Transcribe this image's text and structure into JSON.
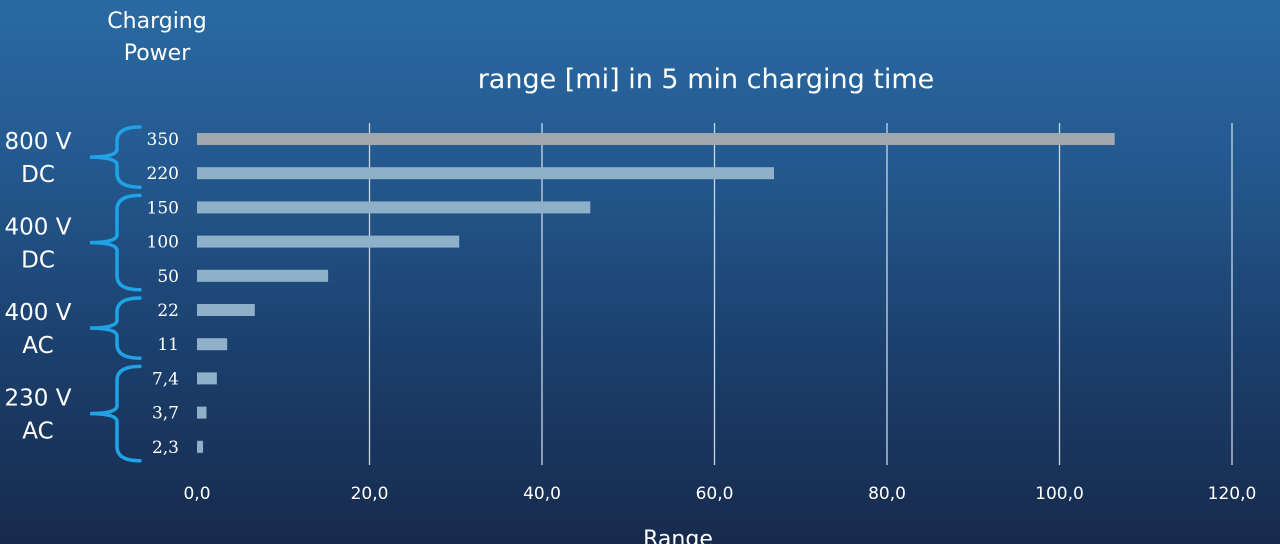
{
  "chart_data": {
    "type": "bar",
    "orientation": "horizontal",
    "title": "range [mi] in 5 min charging time",
    "ylabel": "Charging\nPower",
    "xlabel": "Range",
    "xlim": [
      0,
      120
    ],
    "xticks": [
      "0,0",
      "20,0",
      "40,0",
      "60,0",
      "80,0",
      "100,0",
      "120,0"
    ],
    "grid": "vertical",
    "categories": [
      "350",
      "220",
      "150",
      "100",
      "50",
      "22",
      "11",
      "7,4",
      "3,7",
      "2,3"
    ],
    "values": [
      106.4,
      66.9,
      45.6,
      30.4,
      15.2,
      6.7,
      3.5,
      2.3,
      1.1,
      0.7
    ],
    "highlight_category": "350",
    "groups": [
      {
        "label_line1": "800 V",
        "label_line2": "DC",
        "categories": [
          "350",
          "220"
        ]
      },
      {
        "label_line1": "400 V",
        "label_line2": "DC",
        "categories": [
          "150",
          "100",
          "50"
        ]
      },
      {
        "label_line1": "400 V",
        "label_line2": "AC",
        "categories": [
          "22",
          "11"
        ]
      },
      {
        "label_line1": "230 V",
        "label_line2": "AC",
        "categories": [
          "7,4",
          "3,7",
          "2,3"
        ]
      }
    ],
    "colors": {
      "bar": "#8fb0c9",
      "bar_highlight": "#a3a8ae",
      "gridline": "#c9d6e4",
      "bracket": "#1fa3e6",
      "text": "#ffffff"
    }
  }
}
